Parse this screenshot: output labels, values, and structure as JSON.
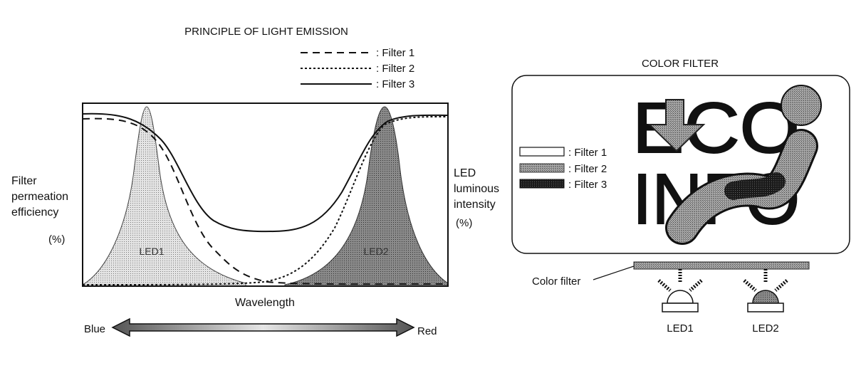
{
  "left_panel": {
    "title": "PRINCIPLE OF LIGHT EMISSION",
    "legend": [
      {
        "label": ": Filter 1",
        "style": "dashed"
      },
      {
        "label": ": Filter 2",
        "style": "dotted"
      },
      {
        "label": ": Filter 3",
        "style": "solid"
      }
    ],
    "y_left_label": [
      "Filter",
      "permeation",
      "efficiency"
    ],
    "y_left_unit": "(%)",
    "y_right_label": [
      "LED",
      "luminous",
      "intensity"
    ],
    "y_right_unit": "(%)",
    "x_label": "Wavelength",
    "led_labels": [
      "LED1",
      "LED2"
    ],
    "arrow_left": "Blue",
    "arrow_right": "Red"
  },
  "right_panel": {
    "title": "COLOR FILTER",
    "legend": [
      {
        "label": ": Filter 1",
        "pattern": "white"
      },
      {
        "label": ": Filter 2",
        "pattern": "gray"
      },
      {
        "label": ": Filter 3",
        "pattern": "black"
      }
    ],
    "display_text": [
      "ECO",
      "INFO"
    ],
    "color_filter_label": "Color filter",
    "led_labels": [
      "LED1",
      "LED2"
    ]
  },
  "colors": {
    "ink": "#111111",
    "gray_fill": "#8a8a8a",
    "light_fill": "#c8c8c8",
    "dark_fill": "#222222"
  }
}
